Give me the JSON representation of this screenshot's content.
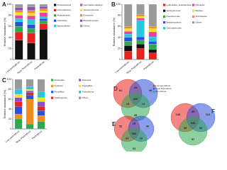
{
  "chart_data": [
    {
      "type": "bar",
      "stacked": true,
      "panel": "A",
      "y_label": "Relative abundance (%)",
      "categories": [
        "Low permafrost",
        "Near Permafrost",
        "Permafrost"
      ],
      "ylim": [
        0,
        100
      ],
      "yticks": [
        0,
        20,
        40,
        60,
        80,
        100
      ],
      "series": [
        {
          "name": "Proteobacteria",
          "color": "#111111",
          "values": [
            35,
            30,
            55
          ]
        },
        {
          "name": "Actinobacteria",
          "color": "#e8231f",
          "values": [
            15,
            18,
            10
          ]
        },
        {
          "name": "Acidobacteria",
          "color": "#2fa84f",
          "values": [
            10,
            8,
            5
          ]
        },
        {
          "name": "Chloroflexi",
          "color": "#2b4fd8",
          "values": [
            8,
            7,
            4
          ]
        },
        {
          "name": "Bacteroidetes",
          "color": "#29c6e0",
          "values": [
            6,
            9,
            3
          ]
        },
        {
          "name": "Gemmatimonadetes",
          "color": "#e83fa8",
          "values": [
            6,
            7,
            8
          ]
        },
        {
          "name": "Verrucomicrobia",
          "color": "#f2e12b",
          "values": [
            5,
            5,
            3
          ]
        },
        {
          "name": "Firmicutes",
          "color": "#f28c1f",
          "values": [
            4,
            5,
            4
          ]
        },
        {
          "name": "Planctomycetes",
          "color": "#8a4fc7",
          "values": [
            5,
            6,
            4
          ]
        },
        {
          "name": "Others",
          "color": "#9a9a9a",
          "values": [
            6,
            5,
            4
          ]
        }
      ]
    },
    {
      "type": "bar",
      "stacked": true,
      "panel": "B",
      "y_label": "Relative abundance (%)",
      "categories": [
        "Low permafrost",
        "Near Permafrost",
        "Permafrost"
      ],
      "ylim": [
        0,
        100
      ],
      "yticks": [
        0,
        20,
        40,
        60,
        80,
        100
      ],
      "series": [
        {
          "name": "unidentified_Acidobacteria",
          "color": "#e8231f",
          "values": [
            15,
            20,
            12
          ]
        },
        {
          "name": "Sphingomonas",
          "color": "#111111",
          "values": [
            10,
            8,
            6
          ]
        },
        {
          "name": "Pseudomonas",
          "color": "#2fa84f",
          "values": [
            8,
            7,
            10
          ]
        },
        {
          "name": "Bradyrhizobium",
          "color": "#2b4fd8",
          "values": [
            7,
            6,
            5
          ]
        },
        {
          "name": "Gemmatimonas",
          "color": "#29c6e0",
          "values": [
            6,
            30,
            8
          ]
        },
        {
          "name": "Nitrospira",
          "color": "#e83fa8",
          "values": [
            5,
            4,
            9
          ]
        },
        {
          "name": "Bacillus",
          "color": "#f2e12b",
          "values": [
            5,
            3,
            6
          ]
        },
        {
          "name": "Arthrobacter",
          "color": "#f28c1f",
          "values": [
            4,
            3,
            4
          ]
        },
        {
          "name": "Others",
          "color": "#9a9a9a",
          "values": [
            40,
            19,
            40
          ]
        }
      ]
    },
    {
      "type": "bar",
      "stacked": true,
      "panel": "C",
      "y_label": "Relative abundance (%)",
      "categories": [
        "Low permafrost",
        "Near Permafrost",
        "Permafrost"
      ],
      "ylim": [
        0,
        100
      ],
      "yticks": [
        0,
        20,
        40,
        60,
        80,
        100
      ],
      "series": [
        {
          "name": "Mortierella",
          "color": "#2fa84f",
          "values": [
            20,
            10,
            15
          ]
        },
        {
          "name": "Fusarium",
          "color": "#f28c1f",
          "values": [
            10,
            50,
            12
          ]
        },
        {
          "name": "Penicillium",
          "color": "#2b4fd8",
          "values": [
            15,
            8,
            10
          ]
        },
        {
          "name": "Cladosporium",
          "color": "#e8231f",
          "values": [
            10,
            5,
            8
          ]
        },
        {
          "name": "Alternaria",
          "color": "#8a4fc7",
          "values": [
            8,
            4,
            10
          ]
        },
        {
          "name": "Aspergillus",
          "color": "#f2e12b",
          "values": [
            7,
            3,
            8
          ]
        },
        {
          "name": "Trichoderma",
          "color": "#29c6e0",
          "values": [
            10,
            5,
            12
          ]
        },
        {
          "name": "Others",
          "color": "#9a9a9a",
          "values": [
            20,
            15,
            25
          ]
        }
      ]
    },
    {
      "type": "venn",
      "panel": "D",
      "sets": [
        "Low permafrost",
        "Near Permafrost",
        "Permafrost"
      ],
      "colors": [
        "#e8231f",
        "#2b4fd8",
        "#2fa84f"
      ],
      "regions": [
        61,
        48,
        35,
        20,
        15,
        12,
        420
      ]
    },
    {
      "type": "venn",
      "panel": "E",
      "colors": [
        "#e8231f",
        "#2b4fd8",
        "#2fa84f"
      ],
      "regions": [
        52,
        40,
        31,
        18,
        14,
        10,
        386
      ]
    },
    {
      "type": "venn",
      "panel": "F",
      "colors": [
        "#e8231f",
        "#2b4fd8",
        "#2fa84f"
      ],
      "regions": [
        138,
        112,
        97,
        45,
        39,
        33,
        540
      ]
    }
  ]
}
